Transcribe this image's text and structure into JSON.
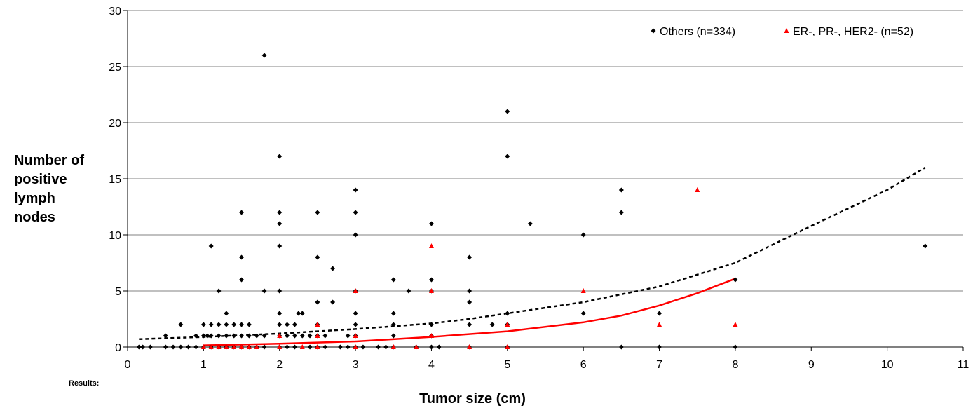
{
  "chart_data": {
    "type": "scatter",
    "xlabel": "Tumor size (cm)",
    "ylabel": "Number of positive lymph nodes",
    "ylabel_lines": [
      "Number of",
      "positive",
      "lymph",
      "nodes"
    ],
    "xlim": [
      0,
      11
    ],
    "ylim": [
      0,
      30
    ],
    "xticks": [
      0,
      1,
      2,
      3,
      4,
      5,
      6,
      7,
      8,
      9,
      10,
      11
    ],
    "yticks": [
      0,
      5,
      10,
      15,
      20,
      25,
      30
    ],
    "grid": "horizontal",
    "legend_position": "top-right",
    "footnote": "Results:",
    "series": [
      {
        "name": "Others (n=334)",
        "marker": "diamond",
        "color": "#000000",
        "points": [
          [
            0.15,
            0
          ],
          [
            0.2,
            0
          ],
          [
            0.3,
            0
          ],
          [
            0.5,
            1
          ],
          [
            0.5,
            0
          ],
          [
            0.6,
            0
          ],
          [
            0.7,
            2
          ],
          [
            0.7,
            0
          ],
          [
            0.8,
            0
          ],
          [
            0.9,
            0
          ],
          [
            0.9,
            1
          ],
          [
            1.0,
            2
          ],
          [
            1.0,
            1
          ],
          [
            1.0,
            0
          ],
          [
            1.05,
            1
          ],
          [
            1.1,
            9
          ],
          [
            1.1,
            2
          ],
          [
            1.1,
            1
          ],
          [
            1.1,
            0
          ],
          [
            1.2,
            5
          ],
          [
            1.2,
            2
          ],
          [
            1.2,
            1
          ],
          [
            1.2,
            0
          ],
          [
            1.3,
            3
          ],
          [
            1.3,
            2
          ],
          [
            1.3,
            1
          ],
          [
            1.3,
            0
          ],
          [
            1.4,
            2
          ],
          [
            1.4,
            1
          ],
          [
            1.4,
            0
          ],
          [
            1.5,
            12
          ],
          [
            1.5,
            8
          ],
          [
            1.5,
            6
          ],
          [
            1.5,
            2
          ],
          [
            1.5,
            1
          ],
          [
            1.5,
            0
          ],
          [
            1.6,
            2
          ],
          [
            1.6,
            1
          ],
          [
            1.6,
            0
          ],
          [
            1.7,
            1
          ],
          [
            1.7,
            0
          ],
          [
            1.8,
            26
          ],
          [
            1.8,
            5
          ],
          [
            1.8,
            1
          ],
          [
            1.8,
            0
          ],
          [
            2.0,
            17
          ],
          [
            2.0,
            12
          ],
          [
            2.0,
            11
          ],
          [
            2.0,
            9
          ],
          [
            2.0,
            5
          ],
          [
            2.0,
            3
          ],
          [
            2.0,
            2
          ],
          [
            2.0,
            1
          ],
          [
            2.0,
            0
          ],
          [
            2.1,
            2
          ],
          [
            2.1,
            1
          ],
          [
            2.1,
            0
          ],
          [
            2.2,
            2
          ],
          [
            2.2,
            1
          ],
          [
            2.2,
            0
          ],
          [
            2.25,
            3
          ],
          [
            2.3,
            3
          ],
          [
            2.3,
            1
          ],
          [
            2.4,
            1
          ],
          [
            2.4,
            0
          ],
          [
            2.5,
            12
          ],
          [
            2.5,
            8
          ],
          [
            2.5,
            4
          ],
          [
            2.5,
            2
          ],
          [
            2.5,
            1
          ],
          [
            2.5,
            0
          ],
          [
            2.6,
            1
          ],
          [
            2.6,
            0
          ],
          [
            2.7,
            7
          ],
          [
            2.7,
            4
          ],
          [
            2.8,
            0
          ],
          [
            2.9,
            1
          ],
          [
            2.9,
            0
          ],
          [
            3.0,
            14
          ],
          [
            3.0,
            12
          ],
          [
            3.0,
            10
          ],
          [
            3.0,
            5
          ],
          [
            3.0,
            3
          ],
          [
            3.0,
            2
          ],
          [
            3.0,
            1
          ],
          [
            3.0,
            0
          ],
          [
            3.1,
            0
          ],
          [
            3.3,
            0
          ],
          [
            3.4,
            0
          ],
          [
            3.5,
            6
          ],
          [
            3.5,
            3
          ],
          [
            3.5,
            2
          ],
          [
            3.5,
            1
          ],
          [
            3.5,
            0
          ],
          [
            3.7,
            5
          ],
          [
            3.8,
            0
          ],
          [
            4.0,
            11
          ],
          [
            4.0,
            6
          ],
          [
            4.0,
            5
          ],
          [
            4.0,
            2
          ],
          [
            4.0,
            1
          ],
          [
            4.0,
            0
          ],
          [
            4.1,
            0
          ],
          [
            4.5,
            8
          ],
          [
            4.5,
            5
          ],
          [
            4.5,
            4
          ],
          [
            4.5,
            2
          ],
          [
            4.5,
            0
          ],
          [
            4.8,
            2
          ],
          [
            5.0,
            21
          ],
          [
            5.0,
            17
          ],
          [
            5.0,
            3
          ],
          [
            5.0,
            2
          ],
          [
            5.0,
            0
          ],
          [
            5.3,
            11
          ],
          [
            6.0,
            10
          ],
          [
            6.0,
            3
          ],
          [
            6.5,
            14
          ],
          [
            6.5,
            12
          ],
          [
            6.5,
            0
          ],
          [
            7.0,
            3
          ],
          [
            7.0,
            0
          ],
          [
            8.0,
            6
          ],
          [
            8.0,
            0
          ],
          [
            10.5,
            9
          ]
        ]
      },
      {
        "name": "ER-, PR-, HER2- (n=52)",
        "marker": "triangle",
        "color": "#ff0000",
        "points": [
          [
            1.0,
            0
          ],
          [
            1.1,
            0
          ],
          [
            1.2,
            0
          ],
          [
            1.3,
            0
          ],
          [
            1.4,
            0
          ],
          [
            1.5,
            0
          ],
          [
            1.6,
            0
          ],
          [
            1.7,
            0
          ],
          [
            2.0,
            1
          ],
          [
            2.0,
            0
          ],
          [
            2.3,
            0
          ],
          [
            2.5,
            2
          ],
          [
            2.5,
            1
          ],
          [
            2.5,
            0
          ],
          [
            3.0,
            5
          ],
          [
            3.0,
            1
          ],
          [
            3.0,
            0
          ],
          [
            3.5,
            0
          ],
          [
            3.8,
            0
          ],
          [
            4.0,
            9
          ],
          [
            4.0,
            5
          ],
          [
            4.0,
            1
          ],
          [
            4.5,
            0
          ],
          [
            5.0,
            2
          ],
          [
            5.0,
            0
          ],
          [
            6.0,
            5
          ],
          [
            7.0,
            2
          ],
          [
            7.5,
            14
          ],
          [
            8.0,
            2
          ]
        ]
      }
    ],
    "trendlines": [
      {
        "style": "dashed",
        "color": "#000000",
        "points": [
          [
            0.15,
            0.7
          ],
          [
            1,
            0.9
          ],
          [
            2,
            1.2
          ],
          [
            3,
            1.6
          ],
          [
            4,
            2.1
          ],
          [
            4.5,
            2.5
          ],
          [
            5,
            3.0
          ],
          [
            6,
            4.0
          ],
          [
            7,
            5.4
          ],
          [
            8,
            7.5
          ],
          [
            9,
            10.8
          ],
          [
            10,
            14.0
          ],
          [
            10.5,
            16.0
          ]
        ]
      },
      {
        "style": "solid",
        "color": "#ff0000",
        "points": [
          [
            1,
            0.15
          ],
          [
            2,
            0.3
          ],
          [
            3,
            0.5
          ],
          [
            4,
            0.9
          ],
          [
            5,
            1.4
          ],
          [
            6,
            2.2
          ],
          [
            6.5,
            2.8
          ],
          [
            7,
            3.7
          ],
          [
            7.5,
            4.8
          ],
          [
            8,
            6.1
          ]
        ]
      }
    ]
  }
}
